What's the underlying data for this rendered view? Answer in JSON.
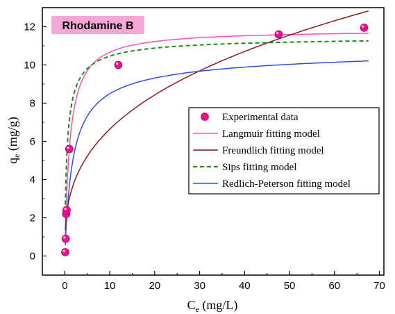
{
  "chart_data": {
    "type": "scatter",
    "title": "Rhodamine B",
    "title_bg": "#f4a6d7",
    "xlabel": {
      "main": "C",
      "sub": "e",
      "unit": " (mg/L)"
    },
    "ylabel": {
      "main": "q",
      "sub": "e",
      "unit": " (mg/g)"
    },
    "xlim": [
      -5,
      71
    ],
    "ylim": [
      -1,
      13
    ],
    "xticks": [
      "0",
      "10",
      "20",
      "30",
      "40",
      "50",
      "60",
      "70"
    ],
    "yticks": [
      "0",
      "2",
      "4",
      "6",
      "8",
      "10",
      "12"
    ],
    "grid": false,
    "legend_position": "center-right",
    "series": [
      {
        "name": "Experimental data",
        "kind": "scatter",
        "color": "#e8108c",
        "points": [
          [
            0.1,
            0.2
          ],
          [
            0.2,
            0.9
          ],
          [
            0.3,
            2.2
          ],
          [
            0.4,
            2.4
          ],
          [
            1.0,
            5.6
          ],
          [
            11.9,
            10.0
          ],
          [
            47.6,
            11.6
          ],
          [
            66.6,
            11.95
          ]
        ]
      },
      {
        "name": "Langmuir fitting model",
        "kind": "line",
        "model": "langmuir",
        "color": "#ff4fb0",
        "dash": "",
        "params": {
          "qm": 11.85,
          "K": 0.9
        }
      },
      {
        "name": "Freundlich fitting model",
        "kind": "line",
        "model": "freundlich",
        "color": "#8b1a1a",
        "dash": "",
        "params": {
          "Kf": 3.0,
          "n": 2.9
        }
      },
      {
        "name": "Sips fitting model",
        "kind": "line",
        "model": "sips",
        "color": "#1a8c1a",
        "dash": "6,4",
        "params": {
          "qm": 11.5,
          "K": 1.8,
          "n": 1.25
        }
      },
      {
        "name": "Redlich-Peterson fitting model",
        "kind": "line",
        "model": "redlich_peterson",
        "color": "#2b4fe8",
        "dash": "",
        "params": {
          "K": 6.0,
          "a": 0.65,
          "b": 0.97
        }
      }
    ]
  }
}
